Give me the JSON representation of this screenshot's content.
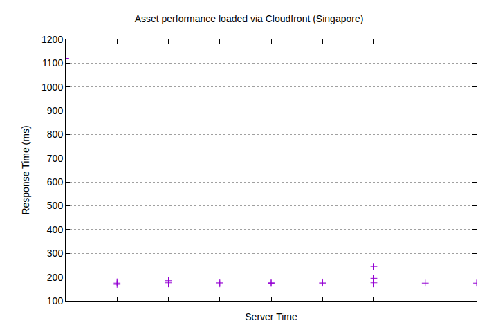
{
  "chart_data": {
    "type": "scatter",
    "title": "Asset performance loaded via Cloudfront (Singapore)",
    "x_label": "Server Time",
    "y_label": "Response Time (ms)",
    "x": [
      0,
      1,
      1,
      1,
      2,
      2,
      2,
      3,
      3,
      4,
      4,
      5,
      5,
      6,
      6,
      6,
      6,
      7,
      8
    ],
    "values": [
      1120,
      170,
      175,
      180,
      172,
      178,
      185,
      172,
      176,
      174,
      178,
      175,
      179,
      172,
      178,
      195,
      245,
      175,
      175
    ],
    "color": "#9400d3",
    "marker": "+",
    "xlim": [
      0,
      8
    ],
    "xticks": [
      0,
      1,
      2,
      3,
      4,
      5,
      6,
      7,
      8
    ],
    "ylim": [
      100,
      1200
    ],
    "yticks": [
      100,
      200,
      300,
      400,
      500,
      600,
      700,
      800,
      900,
      1000,
      1100,
      1200
    ],
    "grid": true,
    "tick_labels": "y"
  }
}
